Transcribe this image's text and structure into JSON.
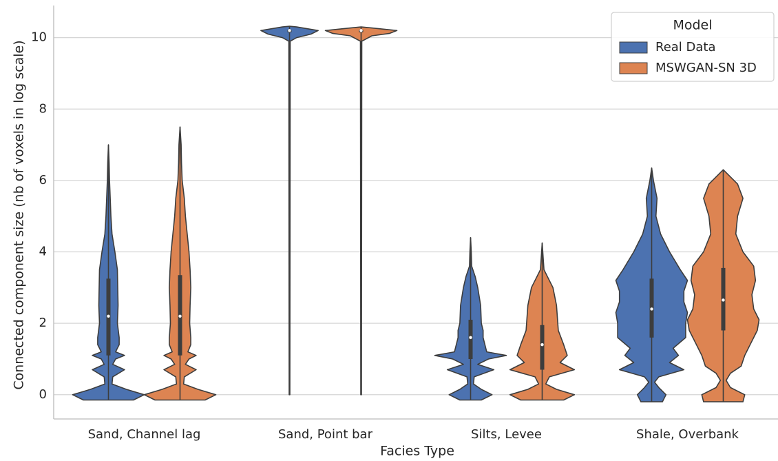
{
  "chart_data": {
    "type": "violin",
    "xlabel": "Facies Type",
    "ylabel": "Connected component size (nb of voxels in log scale)",
    "categories": [
      "Sand, Channel lag",
      "Sand, Point bar",
      "Silts, Levee",
      "Shale, Overbank"
    ],
    "ylim": [
      -0.68,
      10.9
    ],
    "yticks": [
      0,
      2,
      4,
      6,
      8,
      10
    ],
    "grid": true,
    "legend_title": "Model",
    "legend_position": "upper right",
    "series": [
      {
        "name": "Real Data",
        "color": "#4c72b0",
        "violins": [
          {
            "density_y": [
              -0.15,
              0,
              0.15,
              0.3,
              0.5,
              0.7,
              0.85,
              1.0,
              1.1,
              1.2,
              1.4,
              1.6,
              2,
              2.5,
              3,
              3.5,
              4,
              4.5,
              5,
              5.5,
              6,
              6.5,
              7
            ],
            "density_width": [
              0.7,
              1.0,
              0.5,
              0.1,
              0.12,
              0.45,
              0.12,
              0.2,
              0.45,
              0.2,
              0.3,
              0.3,
              0.25,
              0.27,
              0.26,
              0.25,
              0.18,
              0.1,
              0.07,
              0.05,
              0.03,
              0.02,
              0
            ],
            "whisker_low": -0.15,
            "q1": 1.1,
            "median": 2.2,
            "q3": 3.25,
            "whisker_high": 7
          },
          {
            "density_y": [
              0,
              9.9,
              10.0,
              10.1,
              10.2,
              10.3,
              10.32
            ],
            "density_width": [
              0.01,
              0.02,
              0.2,
              0.6,
              0.8,
              0.2,
              0
            ],
            "whisker_low": 0,
            "q1": 10.15,
            "median": 10.2,
            "q3": 10.22,
            "whisker_high": 10.32
          },
          {
            "density_y": [
              -0.15,
              0,
              0.15,
              0.3,
              0.5,
              0.7,
              0.85,
              1.0,
              1.1,
              1.2,
              1.4,
              1.6,
              1.8,
              2,
              2.5,
              3,
              3.3,
              3.6,
              4,
              4.4
            ],
            "density_width": [
              0.3,
              0.6,
              0.3,
              0.08,
              0.1,
              0.65,
              0.2,
              0.5,
              1.0,
              0.45,
              0.4,
              0.35,
              0.35,
              0.3,
              0.28,
              0.2,
              0.13,
              0.03,
              0.02,
              0
            ],
            "whisker_low": -0.15,
            "q1": 1.0,
            "median": 1.6,
            "q3": 2.1,
            "whisker_high": 4.4
          },
          {
            "density_y": [
              -0.2,
              0,
              0.2,
              0.35,
              0.5,
              0.7,
              0.9,
              1.1,
              1.3,
              1.6,
              2,
              2.3,
              2.6,
              2.9,
              3.2,
              3.5,
              4,
              4.5,
              5,
              5.5,
              6,
              6.35
            ],
            "density_width": [
              0.3,
              0.4,
              0.2,
              0.08,
              0.2,
              0.9,
              0.5,
              0.75,
              0.6,
              0.95,
              0.95,
              1.0,
              0.9,
              0.9,
              1.0,
              0.8,
              0.5,
              0.25,
              0.12,
              0.15,
              0.05,
              0
            ],
            "whisker_low": -0.2,
            "q1": 1.6,
            "median": 2.4,
            "q3": 3.25,
            "whisker_high": 6.35
          }
        ]
      },
      {
        "name": "MSWGAN-SN 3D",
        "color": "#dd8452",
        "violins": [
          {
            "density_y": [
              -0.15,
              0,
              0.15,
              0.3,
              0.5,
              0.7,
              0.85,
              1.0,
              1.1,
              1.2,
              1.4,
              1.6,
              2,
              2.5,
              3,
              3.5,
              4,
              4.5,
              5,
              5.5,
              6,
              6.5,
              7,
              7.5
            ],
            "density_width": [
              0.7,
              1.0,
              0.5,
              0.1,
              0.12,
              0.45,
              0.15,
              0.25,
              0.45,
              0.22,
              0.3,
              0.3,
              0.27,
              0.28,
              0.3,
              0.28,
              0.25,
              0.2,
              0.15,
              0.12,
              0.06,
              0.04,
              0.03,
              0
            ],
            "whisker_low": -0.15,
            "q1": 1.1,
            "median": 2.2,
            "q3": 3.35,
            "whisker_high": 7.5
          },
          {
            "density_y": [
              0,
              9.9,
              10.05,
              10.12,
              10.2,
              10.27,
              10.3
            ],
            "density_width": [
              0.01,
              0.02,
              0.3,
              0.8,
              1.0,
              0.3,
              0
            ],
            "whisker_low": 0,
            "q1": 10.15,
            "median": 10.2,
            "q3": 10.22,
            "whisker_high": 10.3
          },
          {
            "density_y": [
              -0.15,
              0,
              0.15,
              0.3,
              0.5,
              0.7,
              0.9,
              1.1,
              1.4,
              1.8,
              2.5,
              3,
              3.3,
              3.5,
              4.25
            ],
            "density_width": [
              0.6,
              0.9,
              0.4,
              0.1,
              0.2,
              0.9,
              0.5,
              0.7,
              0.6,
              0.45,
              0.4,
              0.3,
              0.15,
              0.05,
              0
            ],
            "whisker_low": -0.15,
            "q1": 0.7,
            "median": 1.4,
            "q3": 1.95,
            "whisker_high": 4.25
          },
          {
            "density_y": [
              -0.2,
              0,
              0.2,
              0.4,
              0.6,
              0.8,
              1.1,
              1.4,
              1.8,
              2.1,
              2.4,
              2.8,
              3.2,
              3.6,
              4,
              4.5,
              5,
              5.5,
              5.9,
              6.3
            ],
            "density_width": [
              0.55,
              0.6,
              0.2,
              0.08,
              0.2,
              0.5,
              0.6,
              0.75,
              0.95,
              1.0,
              0.85,
              0.8,
              0.9,
              0.85,
              0.55,
              0.35,
              0.4,
              0.55,
              0.4,
              0
            ],
            "whisker_low": -0.2,
            "q1": 1.8,
            "median": 2.65,
            "q3": 3.55,
            "whisker_high": 6.3
          }
        ]
      }
    ]
  }
}
